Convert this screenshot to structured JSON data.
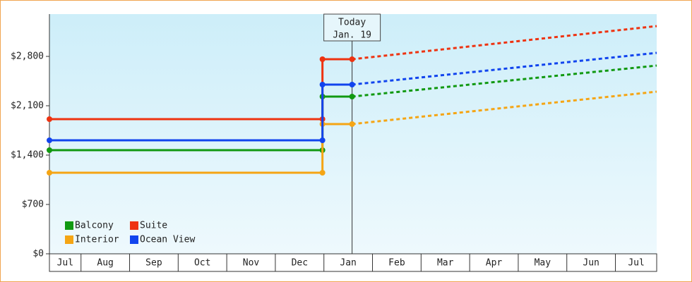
{
  "chart_data": {
    "type": "line",
    "xlim": [
      0.35,
      12.85
    ],
    "xticks": [
      {
        "value": 0.675,
        "label": "Jul"
      },
      {
        "value": 1.5,
        "label": "Aug"
      },
      {
        "value": 2.5,
        "label": "Sep"
      },
      {
        "value": 3.5,
        "label": "Oct"
      },
      {
        "value": 4.5,
        "label": "Nov"
      },
      {
        "value": 5.5,
        "label": "Dec"
      },
      {
        "value": 6.5,
        "label": "Jan"
      },
      {
        "value": 7.5,
        "label": "Feb"
      },
      {
        "value": 8.5,
        "label": "Mar"
      },
      {
        "value": 9.5,
        "label": "Apr"
      },
      {
        "value": 10.5,
        "label": "May"
      },
      {
        "value": 11.5,
        "label": "Jun"
      },
      {
        "value": 12.43,
        "label": "Jul"
      }
    ],
    "ylim": [
      0,
      3400
    ],
    "yticks": [
      {
        "value": 0,
        "label": "$0"
      },
      {
        "value": 700,
        "label": "$700"
      },
      {
        "value": 1400,
        "label": "$1,400"
      },
      {
        "value": 2100,
        "label": "$2,100"
      },
      {
        "value": 2800,
        "label": "$2,800"
      }
    ],
    "annotation": {
      "x": 6.58,
      "lines": [
        "Today",
        "Jan. 19"
      ]
    },
    "legend": "lower left",
    "series": [
      {
        "name": "Balcony",
        "color": "#119911",
        "x": [
          0.35,
          5.97,
          5.97,
          6.58
        ],
        "values": [
          1470,
          1470,
          2230,
          2230
        ],
        "forecast_x": [
          6.58,
          12.85
        ],
        "forecast_values": [
          2230,
          2670
        ]
      },
      {
        "name": "Suite",
        "color": "#ee3311",
        "x": [
          0.35,
          5.97,
          5.97,
          6.58
        ],
        "values": [
          1910,
          1910,
          2760,
          2760
        ],
        "forecast_x": [
          6.58,
          12.85
        ],
        "forecast_values": [
          2760,
          3230
        ]
      },
      {
        "name": "Interior",
        "color": "#f5a514",
        "x": [
          0.35,
          5.97,
          5.97,
          6.58
        ],
        "values": [
          1150,
          1150,
          1840,
          1840
        ],
        "forecast_x": [
          6.58,
          12.85
        ],
        "forecast_values": [
          1840,
          2300
        ]
      },
      {
        "name": "Ocean View",
        "color": "#1144ee",
        "x": [
          0.35,
          5.97,
          5.97,
          6.58
        ],
        "values": [
          1610,
          1610,
          2400,
          2400
        ],
        "forecast_x": [
          6.58,
          12.85
        ],
        "forecast_values": [
          2400,
          2850
        ]
      }
    ]
  }
}
